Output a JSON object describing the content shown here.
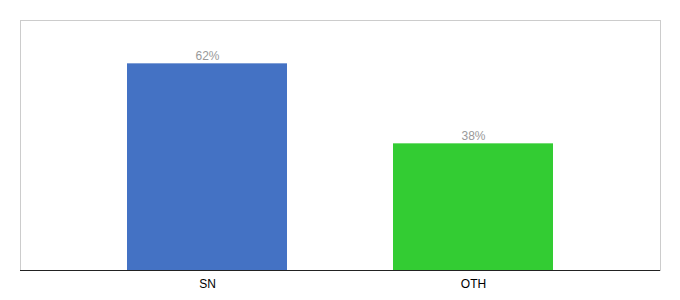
{
  "chart_data": {
    "type": "bar",
    "categories": [
      "SN",
      "OTH"
    ],
    "values": [
      62,
      38
    ],
    "value_labels": [
      "62%",
      "38%"
    ],
    "colors": [
      "#4472C4",
      "#33CC33"
    ],
    "ylim": [
      0,
      75
    ],
    "grid": false,
    "data_labels": true,
    "tick_labels": "x"
  }
}
